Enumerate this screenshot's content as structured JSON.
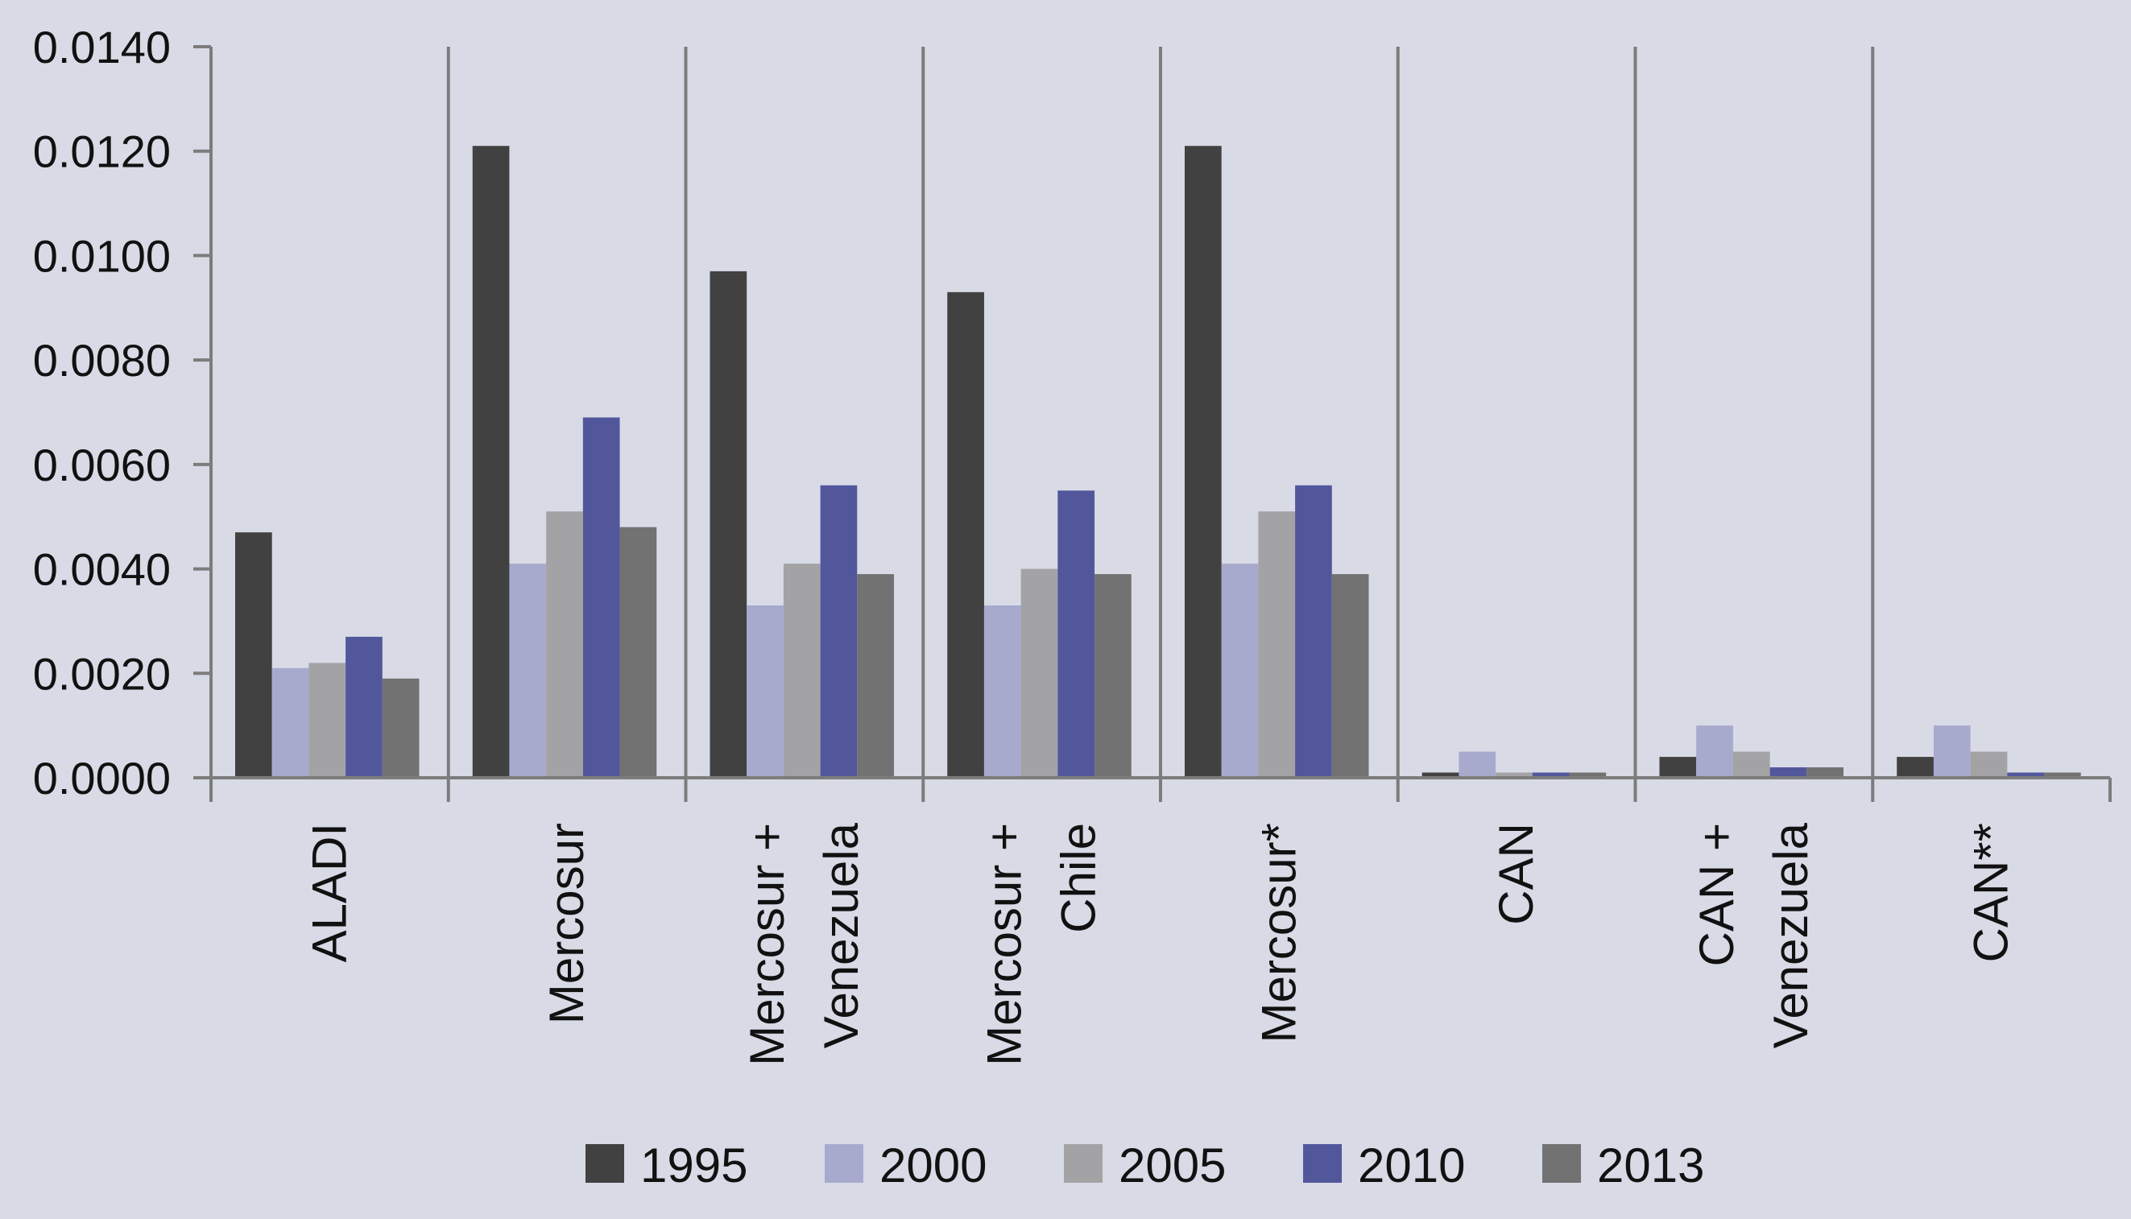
{
  "chart_data": {
    "type": "bar",
    "categories": [
      [
        "ALADI"
      ],
      [
        "Mercosur"
      ],
      [
        "Mercosur +",
        "Venezuela"
      ],
      [
        "Mercosur +",
        "Chile"
      ],
      [
        "Mercosur*"
      ],
      [
        "CAN"
      ],
      [
        "CAN +",
        "Venezuela"
      ],
      [
        "CAN**"
      ]
    ],
    "series": [
      {
        "name": "1995",
        "color": "#414141",
        "values": [
          0.0047,
          0.0121,
          0.0097,
          0.0093,
          0.0121,
          0.0001,
          0.0004,
          0.0004
        ]
      },
      {
        "name": "2000",
        "color": "#a7aacd",
        "values": [
          0.0021,
          0.0041,
          0.0033,
          0.0033,
          0.0041,
          0.0005,
          0.001,
          0.001
        ]
      },
      {
        "name": "2005",
        "color": "#a3a3a5",
        "values": [
          0.0022,
          0.0051,
          0.0041,
          0.004,
          0.0051,
          0.0001,
          0.0005,
          0.0005
        ]
      },
      {
        "name": "2010",
        "color": "#52579c",
        "values": [
          0.0027,
          0.0069,
          0.0056,
          0.0055,
          0.0056,
          0.0001,
          0.0002,
          0.0001
        ]
      },
      {
        "name": "2013",
        "color": "#727272",
        "values": [
          0.0019,
          0.0048,
          0.0039,
          0.0039,
          0.0039,
          0.0001,
          0.0002,
          0.0001
        ]
      }
    ],
    "yticks": [
      "0.0000",
      "0.0020",
      "0.0040",
      "0.0060",
      "0.0080",
      "0.0100",
      "0.0120",
      "0.0140"
    ],
    "ylim": [
      0,
      0.014
    ],
    "grid": false,
    "legend_position": "bottom"
  }
}
